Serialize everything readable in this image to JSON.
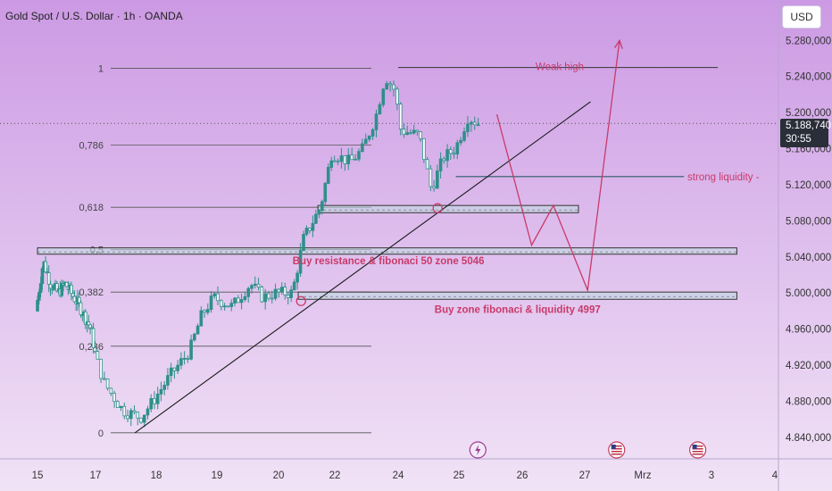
{
  "header": {
    "title": "Gold Spot / U.S. Dollar · 1h · OANDA",
    "currency": "USD"
  },
  "current_price": {
    "value": "5.188,740",
    "countdown": "30:55"
  },
  "colors": {
    "background_top": "#cc9ae4",
    "background_bottom": "#f1e3f6",
    "candle": "#2f8f8a",
    "annotation": "#c93a6a",
    "trendline": "#1a1a1a"
  },
  "chart_data": {
    "type": "candlestick",
    "title": "Gold Spot / U.S. Dollar · 1h · OANDA",
    "ylim": [
      4825,
      5305
    ],
    "y_axis_ticks": [
      {
        "value": 5280,
        "label": "5.280,000"
      },
      {
        "value": 5240,
        "label": "5.240,000"
      },
      {
        "value": 5200,
        "label": "5.200,000"
      },
      {
        "value": 5160,
        "label": "5.160,000"
      },
      {
        "value": 5120,
        "label": "5.120,000"
      },
      {
        "value": 5080,
        "label": "5.080,000"
      },
      {
        "value": 5040,
        "label": "5.040,000"
      },
      {
        "value": 5000,
        "label": "5.000,000"
      },
      {
        "value": 4960,
        "label": "4.960,000"
      },
      {
        "value": 4920,
        "label": "4.920,000"
      },
      {
        "value": 4880,
        "label": "4.880,000"
      },
      {
        "value": 4840,
        "label": "4.840,000"
      }
    ],
    "x_axis_ticks": [
      {
        "day": 0,
        "label": "15"
      },
      {
        "day": 2,
        "label": "17"
      },
      {
        "day": 3,
        "label": "18"
      },
      {
        "day": 4,
        "label": "19"
      },
      {
        "day": 5,
        "label": "20"
      },
      {
        "day": 6,
        "label": "22"
      },
      {
        "day": 7,
        "label": "24"
      },
      {
        "day": 8,
        "label": "25"
      },
      {
        "day": 9,
        "label": "26"
      },
      {
        "day": 10,
        "label": "27"
      },
      {
        "day": 11,
        "label": "Mrz"
      },
      {
        "day": 12,
        "label": "3"
      },
      {
        "day": 13,
        "label": "4"
      }
    ],
    "price_path": [
      {
        "day": 0.0,
        "price": 4980
      },
      {
        "day": 0.25,
        "price": 5035
      },
      {
        "day": 0.5,
        "price": 5010
      },
      {
        "day": 0.75,
        "price": 5000
      },
      {
        "day": 1.0,
        "price": 5010
      },
      {
        "day": 1.5,
        "price": 4985
      },
      {
        "day": 1.9,
        "price": 4960
      },
      {
        "day": 2.2,
        "price": 4900
      },
      {
        "day": 2.5,
        "price": 4870
      },
      {
        "day": 2.8,
        "price": 4862
      },
      {
        "day": 3.0,
        "price": 4880
      },
      {
        "day": 3.3,
        "price": 4910
      },
      {
        "day": 3.6,
        "price": 4935
      },
      {
        "day": 3.8,
        "price": 4975
      },
      {
        "day": 4.0,
        "price": 4995
      },
      {
        "day": 4.3,
        "price": 4985
      },
      {
        "day": 4.6,
        "price": 5010
      },
      {
        "day": 4.8,
        "price": 4995
      },
      {
        "day": 5.0,
        "price": 5000
      },
      {
        "day": 5.3,
        "price": 5000
      },
      {
        "day": 5.5,
        "price": 5060
      },
      {
        "day": 5.8,
        "price": 5095
      },
      {
        "day": 6.0,
        "price": 5155
      },
      {
        "day": 6.3,
        "price": 5145
      },
      {
        "day": 6.5,
        "price": 5160
      },
      {
        "day": 6.7,
        "price": 5195
      },
      {
        "day": 6.85,
        "price": 5240
      },
      {
        "day": 7.0,
        "price": 5225
      },
      {
        "day": 7.1,
        "price": 5180
      },
      {
        "day": 7.4,
        "price": 5175
      },
      {
        "day": 7.6,
        "price": 5115
      },
      {
        "day": 7.8,
        "price": 5150
      },
      {
        "day": 8.0,
        "price": 5160
      },
      {
        "day": 8.2,
        "price": 5195
      },
      {
        "day": 8.35,
        "price": 5188
      }
    ],
    "fibonacci_levels": [
      {
        "label": "1",
        "value": 5249
      },
      {
        "label": "0,786",
        "value": 5164
      },
      {
        "label": "0,618",
        "value": 5095
      },
      {
        "label": "0,5",
        "value": 5048
      },
      {
        "label": "0,382",
        "value": 5001
      },
      {
        "label": "0,236",
        "value": 4941
      },
      {
        "label": "0",
        "value": 4845
      }
    ],
    "trendline": {
      "from": {
        "day": 2.65,
        "price": 4845
      },
      "to": {
        "day": 10.1,
        "price": 5212
      }
    },
    "zones": [
      {
        "from_day": 5.7,
        "to_day": 9.9,
        "low": 5089,
        "high": 5097
      },
      {
        "from_day": 0.0,
        "to_day": 12.4,
        "low": 5043,
        "high": 5050
      },
      {
        "from_day": 5.35,
        "to_day": 12.4,
        "low": 4993,
        "high": 5001
      }
    ],
    "strong_liquidity_line": {
      "from_day": 7.95,
      "to_day": 11.6,
      "value": 5129
    },
    "weak_high_line": {
      "from_day": 7.0,
      "to_day": 12.1,
      "value": 5250
    },
    "markers": [
      {
        "day": 5.4,
        "price": 4991
      },
      {
        "day": 7.65,
        "price": 5094
      }
    ],
    "projection_path": [
      {
        "day": 8.6,
        "price": 5198
      },
      {
        "day": 9.15,
        "price": 5053
      },
      {
        "day": 9.5,
        "price": 5097
      },
      {
        "day": 10.05,
        "price": 5003
      },
      {
        "day": 10.6,
        "price": 5280
      }
    ],
    "annotations": [
      {
        "text": "Weak high",
        "day": 9.6,
        "price": 5251
      },
      {
        "text": "strong liquidity -",
        "day": 11.65,
        "price": 5129
      },
      {
        "text": "Buy resistance & fibonaci 50 zone 5046",
        "day": 5.25,
        "price": 5036
      },
      {
        "text": "Buy zone fibonaci & liquidity 4997",
        "day": 7.6,
        "price": 4982
      }
    ],
    "event_icons": [
      {
        "type": "lightning",
        "day": 8.3
      },
      {
        "type": "us-flag",
        "day": 10.55
      },
      {
        "type": "us-flag",
        "day": 11.8
      }
    ]
  }
}
